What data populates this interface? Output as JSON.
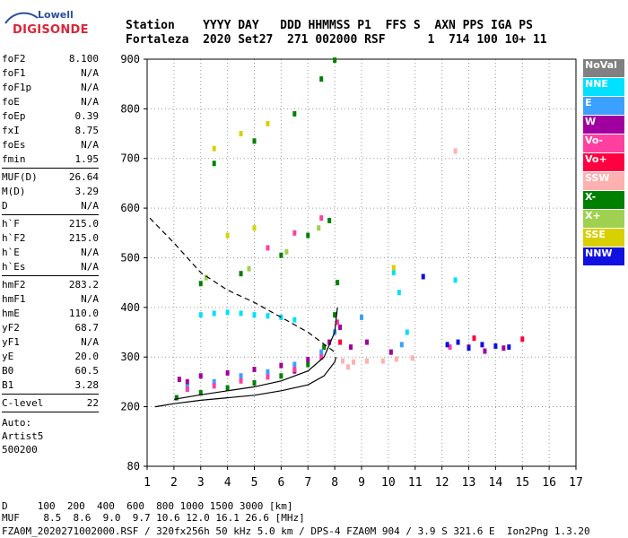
{
  "logo": {
    "line1": "Lowell",
    "line2": "DIGISONDE"
  },
  "header": {
    "line1": "Station    YYYY DAY   DDD HHMMSS P1  FFS S  AXN PPS IGA PS",
    "line2": "Fortaleza  2020 Set27  271 002000 RSF      1  714 100 10+ 11"
  },
  "params": [
    {
      "group": [
        {
          "label": "foF2",
          "value": "8.100"
        },
        {
          "label": "foF1",
          "value": "N/A"
        },
        {
          "label": "foF1p",
          "value": "N/A"
        },
        {
          "label": "foE",
          "value": "N/A"
        },
        {
          "label": "foEp",
          "value": "0.39"
        },
        {
          "label": "fxI",
          "value": "8.75"
        },
        {
          "label": "foEs",
          "value": "N/A"
        },
        {
          "label": "fmin",
          "value": "1.95"
        }
      ]
    },
    {
      "group": [
        {
          "label": "MUF(D)",
          "value": "26.64"
        },
        {
          "label": "M(D)",
          "value": "3.29"
        },
        {
          "label": "D",
          "value": "N/A"
        }
      ]
    },
    {
      "group": [
        {
          "label": "h`F",
          "value": "215.0"
        },
        {
          "label": "h`F2",
          "value": "215.0"
        },
        {
          "label": "h`E",
          "value": "N/A"
        },
        {
          "label": "h`Es",
          "value": "N/A"
        }
      ]
    },
    {
      "group": [
        {
          "label": "hmF2",
          "value": "283.2"
        },
        {
          "label": "hmF1",
          "value": "N/A"
        },
        {
          "label": "hmE",
          "value": "110.0"
        },
        {
          "label": "yF2",
          "value": "68.7"
        },
        {
          "label": "yF1",
          "value": "N/A"
        },
        {
          "label": "yE",
          "value": "20.0"
        },
        {
          "label": "B0",
          "value": "60.5"
        },
        {
          "label": "B1",
          "value": "3.28"
        }
      ]
    },
    {
      "group": [
        {
          "label": "C-level",
          "value": "22"
        }
      ]
    }
  ],
  "autoscaling": {
    "line1": "Auto:",
    "line2": "Artist5",
    "line3": "500200"
  },
  "legend": [
    {
      "label": "NoVal",
      "color": "#808080",
      "text": "#ffffff"
    },
    {
      "label": "NNE",
      "color": "#00e0ff",
      "text": "#ffffff"
    },
    {
      "label": "E",
      "color": "#3ca0ff",
      "text": "#ffffff"
    },
    {
      "label": "W",
      "color": "#a000a0",
      "text": "#ffffff"
    },
    {
      "label": "Vo-",
      "color": "#ff40a0",
      "text": "#ffffff"
    },
    {
      "label": "Vo+",
      "color": "#ff0040",
      "text": "#ffffff"
    },
    {
      "label": "SSW",
      "color": "#ffb0b0",
      "text": "#ffffff"
    },
    {
      "label": "X-",
      "color": "#008000",
      "text": "#ffffff"
    },
    {
      "label": "X+",
      "color": "#a0d050",
      "text": "#ffffff"
    },
    {
      "label": "SSE",
      "color": "#d8d000",
      "text": "#ffffff"
    },
    {
      "label": "NNW",
      "color": "#1010e0",
      "text": "#ffffff"
    }
  ],
  "bottom": {
    "line1": "D     100  200  400  600  800 1000 1500 3000 [km]",
    "line2": "MUF    8.5  8.6  9.0  9.7 10.6 12.0 16.1 26.6 [MHz]",
    "line3": "FZA0M_2020271002000.RSF / 320fx256h 50 kHz 5.0 km / DPS-4 FZA0M 904 / 3.9 S 321.6 E  Ion2Png 1.3.20"
  },
  "chart_data": {
    "type": "scatter",
    "title": "",
    "xlabel": "",
    "ylabel": "",
    "xlim": [
      1,
      17
    ],
    "ylim": [
      80,
      900
    ],
    "x_ticks": [
      1,
      2,
      3,
      4,
      5,
      6,
      7,
      8,
      9,
      10,
      11,
      12,
      13,
      14,
      15,
      16,
      17
    ],
    "y_ticks": [
      80,
      200,
      300,
      400,
      500,
      600,
      700,
      800,
      900
    ],
    "grid": "dotted",
    "legend_position": "right",
    "series": [
      {
        "name": "X-",
        "color": "#008000",
        "points": [
          [
            2.1,
            218
          ],
          [
            3.0,
            228
          ],
          [
            4.0,
            238
          ],
          [
            5.0,
            248
          ],
          [
            6.0,
            262
          ],
          [
            7.0,
            285
          ],
          [
            7.6,
            320
          ],
          [
            8.0,
            385
          ],
          [
            8.1,
            450
          ],
          [
            3.0,
            448
          ],
          [
            4.5,
            468
          ],
          [
            6.0,
            505
          ],
          [
            7.0,
            545
          ],
          [
            7.8,
            575
          ],
          [
            3.5,
            690
          ],
          [
            5.0,
            735
          ],
          [
            6.5,
            790
          ],
          [
            7.5,
            860
          ],
          [
            8.0,
            898
          ]
        ]
      },
      {
        "name": "W",
        "color": "#a000a0",
        "points": [
          [
            2.2,
            255
          ],
          [
            3.0,
            262
          ],
          [
            4.0,
            268
          ],
          [
            5.0,
            275
          ],
          [
            6.0,
            283
          ],
          [
            7.0,
            295
          ],
          [
            7.8,
            330
          ],
          [
            8.2,
            360
          ],
          [
            8.6,
            320
          ],
          [
            9.2,
            330
          ],
          [
            10.1,
            310
          ],
          [
            13.0,
            320
          ],
          [
            13.6,
            312
          ],
          [
            14.3,
            318
          ],
          [
            2.5,
            250
          ],
          [
            6.5,
            272
          ]
        ]
      },
      {
        "name": "NNE",
        "color": "#00e0ff",
        "points": [
          [
            3.0,
            385
          ],
          [
            3.5,
            388
          ],
          [
            4.0,
            390
          ],
          [
            4.5,
            388
          ],
          [
            5.0,
            385
          ],
          [
            5.5,
            383
          ],
          [
            6.0,
            380
          ],
          [
            6.5,
            375
          ],
          [
            10.2,
            470
          ],
          [
            10.4,
            430
          ],
          [
            10.7,
            350
          ],
          [
            12.5,
            455
          ]
        ]
      },
      {
        "name": "E",
        "color": "#3ca0ff",
        "points": [
          [
            2.5,
            240
          ],
          [
            3.5,
            250
          ],
          [
            4.5,
            262
          ],
          [
            5.5,
            270
          ],
          [
            6.5,
            285
          ],
          [
            7.5,
            310
          ],
          [
            8.0,
            350
          ],
          [
            9.0,
            380
          ],
          [
            10.5,
            325
          ]
        ]
      },
      {
        "name": "Vo-",
        "color": "#ff40a0",
        "points": [
          [
            2.5,
            235
          ],
          [
            3.5,
            242
          ],
          [
            4.5,
            252
          ],
          [
            5.5,
            260
          ],
          [
            6.5,
            275
          ],
          [
            7.5,
            300
          ],
          [
            8.1,
            370
          ],
          [
            5.5,
            520
          ],
          [
            6.5,
            550
          ],
          [
            7.5,
            580
          ],
          [
            12.3,
            320
          ]
        ]
      },
      {
        "name": "SSW",
        "color": "#ffb0b0",
        "points": [
          [
            8.3,
            292
          ],
          [
            8.7,
            290
          ],
          [
            9.2,
            292
          ],
          [
            9.8,
            292
          ],
          [
            10.3,
            296
          ],
          [
            10.9,
            298
          ],
          [
            8.5,
            280
          ],
          [
            12.5,
            715
          ]
        ]
      },
      {
        "name": "SSE",
        "color": "#d8d000",
        "points": [
          [
            3.5,
            720
          ],
          [
            4.5,
            750
          ],
          [
            5.5,
            770
          ],
          [
            4.0,
            545
          ],
          [
            5.0,
            560
          ],
          [
            10.2,
            480
          ]
        ]
      },
      {
        "name": "NNW",
        "color": "#1010e0",
        "points": [
          [
            12.2,
            325
          ],
          [
            12.6,
            330
          ],
          [
            13.0,
            318
          ],
          [
            13.5,
            325
          ],
          [
            14.0,
            322
          ],
          [
            14.5,
            320
          ],
          [
            11.3,
            462
          ]
        ]
      },
      {
        "name": "X+",
        "color": "#a0d050",
        "points": [
          [
            3.2,
            460
          ],
          [
            4.8,
            478
          ],
          [
            6.2,
            512
          ],
          [
            7.4,
            560
          ]
        ]
      },
      {
        "name": "Vo+",
        "color": "#ff0040",
        "points": [
          [
            8.2,
            330
          ],
          [
            13.2,
            338
          ],
          [
            15.0,
            336
          ]
        ]
      }
    ],
    "lines": [
      {
        "name": "",
        "color": "#000000",
        "style": "solid",
        "points": [
          [
            1.3,
            200
          ],
          [
            2,
            206
          ],
          [
            3,
            213
          ],
          [
            4,
            218
          ],
          [
            5,
            223
          ],
          [
            6,
            232
          ],
          [
            7,
            244
          ],
          [
            7.6,
            262
          ],
          [
            8,
            290
          ],
          [
            8.05,
            300
          ]
        ]
      },
      {
        "name": "",
        "color": "#000000",
        "style": "solid",
        "points": [
          [
            2,
            215
          ],
          [
            3,
            224
          ],
          [
            4,
            232
          ],
          [
            5,
            240
          ],
          [
            6,
            252
          ],
          [
            7,
            272
          ],
          [
            7.6,
            300
          ],
          [
            8,
            350
          ],
          [
            8.1,
            400
          ]
        ]
      },
      {
        "name": "",
        "color": "#000000",
        "style": "dashed",
        "points": [
          [
            1.1,
            580
          ],
          [
            2,
            530
          ],
          [
            3,
            470
          ],
          [
            4,
            435
          ],
          [
            5,
            410
          ],
          [
            6,
            380
          ],
          [
            7,
            350
          ],
          [
            8,
            310
          ]
        ]
      }
    ]
  }
}
